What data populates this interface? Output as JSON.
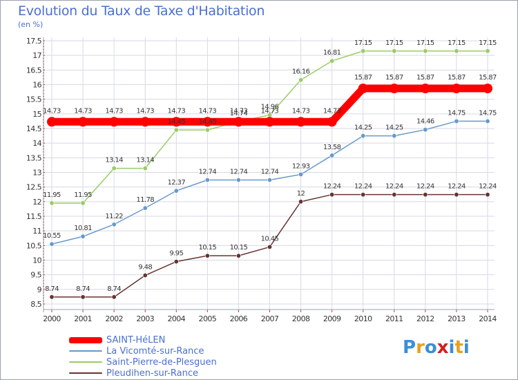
{
  "chart_data": {
    "type": "line",
    "title": "Evolution du Taux de Taxe d'Habitation",
    "subtitle": "(en %)",
    "x": [
      "2000",
      "2001",
      "2002",
      "2003",
      "2004",
      "2005",
      "2006",
      "2007",
      "2008",
      "2009",
      "2010",
      "2011",
      "2012",
      "2013",
      "2014"
    ],
    "ylim": [
      8.5,
      17.5
    ],
    "yticks": [
      "8.5",
      "9",
      "9.5",
      "10",
      "10.5",
      "11",
      "11.5",
      "12",
      "12.5",
      "13",
      "13.5",
      "14",
      "14.5",
      "15",
      "15.5",
      "16",
      "16.5",
      "17",
      "17.5"
    ],
    "grid": true,
    "legend_position": "bottom-left",
    "series": [
      {
        "name": "SAINT-HéLEN",
        "color": "#ff0000",
        "values": [
          14.73,
          14.73,
          14.73,
          14.73,
          14.73,
          14.73,
          14.73,
          14.73,
          14.73,
          14.73,
          15.87,
          15.87,
          15.87,
          15.87,
          15.87
        ],
        "labels": [
          "14.73",
          "14.73",
          "14.73",
          "14.73",
          "14.73",
          "14.73",
          "14.73",
          "14.73",
          "14.73",
          "14.73",
          "15.87",
          "15.87",
          "15.87",
          "15.87",
          "15.87"
        ]
      },
      {
        "name": "La Vicomté-sur-Rance",
        "color": "#6699cc",
        "values": [
          10.55,
          10.81,
          11.22,
          11.78,
          12.37,
          12.74,
          12.74,
          12.74,
          12.93,
          13.58,
          14.25,
          14.25,
          14.46,
          14.75,
          14.75
        ],
        "labels": [
          "10.55",
          "10.81",
          "11.22",
          "11.78",
          "12.37",
          "12.74",
          "12.74",
          "12.74",
          "12.93",
          "13.58",
          "14.25",
          "14.25",
          "14.46",
          "14.75",
          "14.75"
        ]
      },
      {
        "name": "Saint-Pierre-de-Plesguen",
        "color": "#99cc66",
        "values": [
          11.95,
          11.95,
          13.14,
          13.14,
          14.45,
          14.45,
          14.74,
          14.96,
          16.16,
          16.81,
          17.15,
          17.15,
          17.15,
          17.15,
          17.15
        ],
        "labels": [
          "11.95",
          "11.95",
          "13.14",
          "13.14",
          "14.45",
          "14.45",
          "14.74",
          "14.96",
          "16.16",
          "16.81",
          "17.15",
          "17.15",
          "17.15",
          "17.15",
          "17.15"
        ]
      },
      {
        "name": "Pleudihen-sur-Rance",
        "color": "#663333",
        "values": [
          8.74,
          8.74,
          8.74,
          9.48,
          9.95,
          10.15,
          10.15,
          10.45,
          12,
          12.24,
          12.24,
          12.24,
          12.24,
          12.24,
          12.24
        ],
        "labels": [
          "8.74",
          "8.74",
          "8.74",
          "9.48",
          "9.95",
          "10.15",
          "10.15",
          "10.45",
          "12",
          "12.24",
          "12.24",
          "12.24",
          "12.24",
          "12.24",
          "12.24"
        ]
      }
    ]
  },
  "logo": {
    "letters": [
      "P",
      "r",
      "o",
      "x",
      "i",
      "t",
      "i"
    ],
    "colors": [
      "#3b8fd6",
      "#e8a020",
      "#3b8fd6",
      "#d02020",
      "#3b8fd6",
      "#e8a020",
      "#3b8fd6"
    ]
  }
}
